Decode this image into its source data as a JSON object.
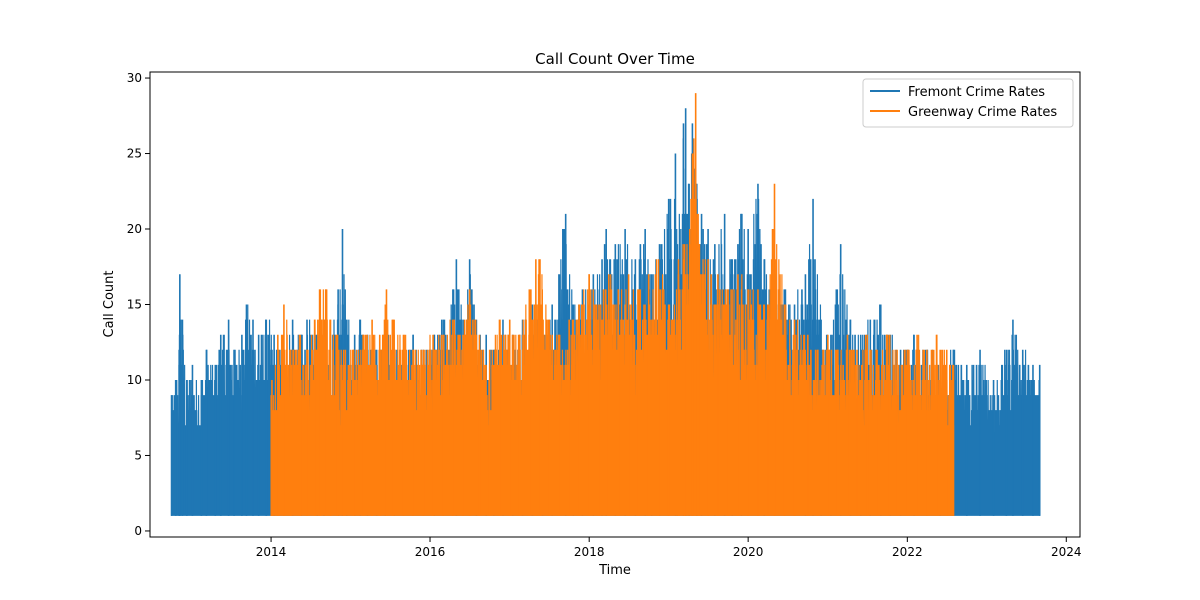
{
  "chart_data": {
    "type": "line",
    "title": "Call Count Over Time",
    "xlabel": "Time",
    "ylabel": "Call Count",
    "xlim": [
      "2012-06-24",
      "2024-03-04"
    ],
    "ylim": [
      -0.4,
      30.4
    ],
    "x_ticks": [
      "2014",
      "2016",
      "2018",
      "2020",
      "2022",
      "2024"
    ],
    "y_ticks": [
      "0",
      "5",
      "10",
      "15",
      "20",
      "25",
      "30"
    ],
    "grid": false,
    "legend_position": "top-right",
    "series": [
      {
        "name": "Fremont Crime Rates",
        "color": "#1f77b4",
        "start": "2012-10-01",
        "end": "2023-09-01",
        "points": [
          [
            "2012-10-01",
            9
          ],
          [
            "2012-10-20",
            10
          ],
          [
            "2012-11-05",
            12
          ],
          [
            "2012-11-08",
            17
          ],
          [
            "2012-11-20",
            14
          ],
          [
            "2012-12-10",
            10
          ],
          [
            "2013-01-05",
            11
          ],
          [
            "2013-02-15",
            10
          ],
          [
            "2013-03-10",
            12
          ],
          [
            "2013-04-20",
            11
          ],
          [
            "2013-05-15",
            13
          ],
          [
            "2013-06-20",
            14
          ],
          [
            "2013-07-15",
            12
          ],
          [
            "2013-08-20",
            13
          ],
          [
            "2013-09-10",
            15
          ],
          [
            "2013-10-10",
            14
          ],
          [
            "2013-11-05",
            13
          ],
          [
            "2013-12-10",
            14
          ],
          [
            "2014-01-15",
            13
          ],
          [
            "2014-03-01",
            12
          ],
          [
            "2014-04-10",
            14
          ],
          [
            "2014-05-20",
            13
          ],
          [
            "2014-06-15",
            14
          ],
          [
            "2014-08-01",
            13
          ],
          [
            "2014-09-01",
            14
          ],
          [
            "2014-10-01",
            13
          ],
          [
            "2014-11-05",
            16
          ],
          [
            "2014-11-25",
            20
          ],
          [
            "2014-12-15",
            14
          ],
          [
            "2015-01-20",
            13
          ],
          [
            "2015-02-15",
            14
          ],
          [
            "2015-03-20",
            13
          ],
          [
            "2015-05-01",
            12
          ],
          [
            "2015-06-10",
            14
          ],
          [
            "2015-07-20",
            13
          ],
          [
            "2015-09-01",
            12
          ],
          [
            "2015-10-15",
            13
          ],
          [
            "2015-12-01",
            12
          ],
          [
            "2016-01-20",
            13
          ],
          [
            "2016-03-01",
            14
          ],
          [
            "2016-04-15",
            16
          ],
          [
            "2016-05-01",
            18
          ],
          [
            "2016-06-01",
            14
          ],
          [
            "2016-07-01",
            18
          ],
          [
            "2016-08-01",
            14
          ],
          [
            "2016-09-15",
            13
          ],
          [
            "2016-10-20",
            12
          ],
          [
            "2016-12-01",
            14
          ],
          [
            "2017-01-15",
            13
          ],
          [
            "2017-03-01",
            14
          ],
          [
            "2017-04-15",
            15
          ],
          [
            "2017-06-01",
            14
          ],
          [
            "2017-07-15",
            15
          ],
          [
            "2017-09-15",
            21
          ],
          [
            "2017-10-20",
            15
          ],
          [
            "2017-12-01",
            16
          ],
          [
            "2018-01-20",
            17
          ],
          [
            "2018-03-01",
            18
          ],
          [
            "2018-03-20",
            20
          ],
          [
            "2018-05-01",
            19
          ],
          [
            "2018-06-15",
            20
          ],
          [
            "2018-08-01",
            18
          ],
          [
            "2018-09-15",
            20
          ],
          [
            "2018-10-15",
            17
          ],
          [
            "2018-11-20",
            19
          ],
          [
            "2019-01-01",
            22
          ],
          [
            "2019-02-01",
            25
          ],
          [
            "2019-02-10",
            19
          ],
          [
            "2019-03-10",
            27
          ],
          [
            "2019-03-20",
            28
          ],
          [
            "2019-04-05",
            23
          ],
          [
            "2019-04-20",
            27
          ],
          [
            "2019-05-10",
            23
          ],
          [
            "2019-06-01",
            21
          ],
          [
            "2019-07-01",
            20
          ],
          [
            "2019-08-01",
            19
          ],
          [
            "2019-09-15",
            21
          ],
          [
            "2019-10-20",
            18
          ],
          [
            "2019-12-01",
            21
          ],
          [
            "2020-01-01",
            20
          ],
          [
            "2020-02-15",
            23
          ],
          [
            "2020-03-15",
            18
          ],
          [
            "2020-05-01",
            17
          ],
          [
            "2020-06-15",
            16
          ],
          [
            "2020-08-01",
            15
          ],
          [
            "2020-09-20",
            17
          ],
          [
            "2020-10-25",
            22
          ],
          [
            "2020-12-01",
            14
          ],
          [
            "2021-01-15",
            13
          ],
          [
            "2021-03-01",
            19
          ],
          [
            "2021-04-15",
            14
          ],
          [
            "2021-06-01",
            13
          ],
          [
            "2021-07-15",
            14
          ],
          [
            "2021-09-01",
            15
          ],
          [
            "2021-10-15",
            13
          ],
          [
            "2021-12-01",
            12
          ],
          [
            "2022-02-01",
            13
          ],
          [
            "2022-04-01",
            12
          ],
          [
            "2022-06-01",
            11
          ],
          [
            "2022-08-01",
            12
          ],
          [
            "2022-10-01",
            11
          ],
          [
            "2022-12-01",
            12
          ],
          [
            "2023-02-01",
            10
          ],
          [
            "2023-04-01",
            12
          ],
          [
            "2023-05-01",
            14
          ],
          [
            "2023-06-15",
            12
          ],
          [
            "2023-08-01",
            11
          ],
          [
            "2023-09-01",
            11
          ]
        ]
      },
      {
        "name": "Greenway Crime Rates",
        "color": "#ff7f0e",
        "start": "2014-01-01",
        "end": "2022-08-01",
        "points": [
          [
            "2014-01-05",
            10
          ],
          [
            "2014-02-01",
            13
          ],
          [
            "2014-03-01",
            15
          ],
          [
            "2014-04-01",
            12
          ],
          [
            "2014-05-15",
            13
          ],
          [
            "2014-06-15",
            12
          ],
          [
            "2014-07-20",
            14
          ],
          [
            "2014-08-15",
            16
          ],
          [
            "2014-09-10",
            16
          ],
          [
            "2014-10-01",
            14
          ],
          [
            "2014-11-01",
            13
          ],
          [
            "2014-12-01",
            12
          ],
          [
            "2015-01-15",
            12
          ],
          [
            "2015-03-01",
            13
          ],
          [
            "2015-04-10",
            14
          ],
          [
            "2015-05-15",
            13
          ],
          [
            "2015-06-15",
            16
          ],
          [
            "2015-07-15",
            14
          ],
          [
            "2015-09-01",
            13
          ],
          [
            "2015-10-15",
            12
          ],
          [
            "2015-12-01",
            12
          ],
          [
            "2016-01-15",
            13
          ],
          [
            "2016-03-01",
            13
          ],
          [
            "2016-04-15",
            14
          ],
          [
            "2016-06-01",
            13
          ],
          [
            "2016-07-01",
            16
          ],
          [
            "2016-08-15",
            13
          ],
          [
            "2016-10-01",
            12
          ],
          [
            "2016-11-15",
            14
          ],
          [
            "2017-01-01",
            14
          ],
          [
            "2017-02-15",
            13
          ],
          [
            "2017-04-01",
            16
          ],
          [
            "2017-05-01",
            18
          ],
          [
            "2017-05-20",
            18
          ],
          [
            "2017-07-01",
            14
          ],
          [
            "2017-08-15",
            13
          ],
          [
            "2017-10-01",
            14
          ],
          [
            "2017-11-15",
            15
          ],
          [
            "2018-01-01",
            17
          ],
          [
            "2018-02-15",
            15
          ],
          [
            "2018-04-01",
            17
          ],
          [
            "2018-05-15",
            16
          ],
          [
            "2018-07-01",
            17
          ],
          [
            "2018-08-15",
            16
          ],
          [
            "2018-10-01",
            17
          ],
          [
            "2018-11-15",
            18
          ],
          [
            "2019-01-01",
            15
          ],
          [
            "2019-02-15",
            18
          ],
          [
            "2019-03-15",
            19
          ],
          [
            "2019-04-20",
            25
          ],
          [
            "2019-05-05",
            29
          ],
          [
            "2019-05-20",
            19
          ],
          [
            "2019-07-01",
            18
          ],
          [
            "2019-08-15",
            17
          ],
          [
            "2019-10-01",
            16
          ],
          [
            "2019-11-15",
            17
          ],
          [
            "2020-01-01",
            16
          ],
          [
            "2020-02-15",
            16
          ],
          [
            "2020-04-01",
            15
          ],
          [
            "2020-05-01",
            23
          ],
          [
            "2020-06-15",
            15
          ],
          [
            "2020-08-01",
            14
          ],
          [
            "2020-10-01",
            13
          ],
          [
            "2020-11-15",
            12
          ],
          [
            "2021-01-01",
            13
          ],
          [
            "2021-02-15",
            12
          ],
          [
            "2021-04-01",
            13
          ],
          [
            "2021-05-15",
            12
          ],
          [
            "2021-07-01",
            13
          ],
          [
            "2021-08-15",
            12
          ],
          [
            "2021-10-01",
            13
          ],
          [
            "2021-11-15",
            12
          ],
          [
            "2022-01-01",
            12
          ],
          [
            "2022-02-15",
            13
          ],
          [
            "2022-04-01",
            12
          ],
          [
            "2022-05-15",
            13
          ],
          [
            "2022-07-01",
            12
          ],
          [
            "2022-08-01",
            11
          ]
        ]
      }
    ]
  }
}
